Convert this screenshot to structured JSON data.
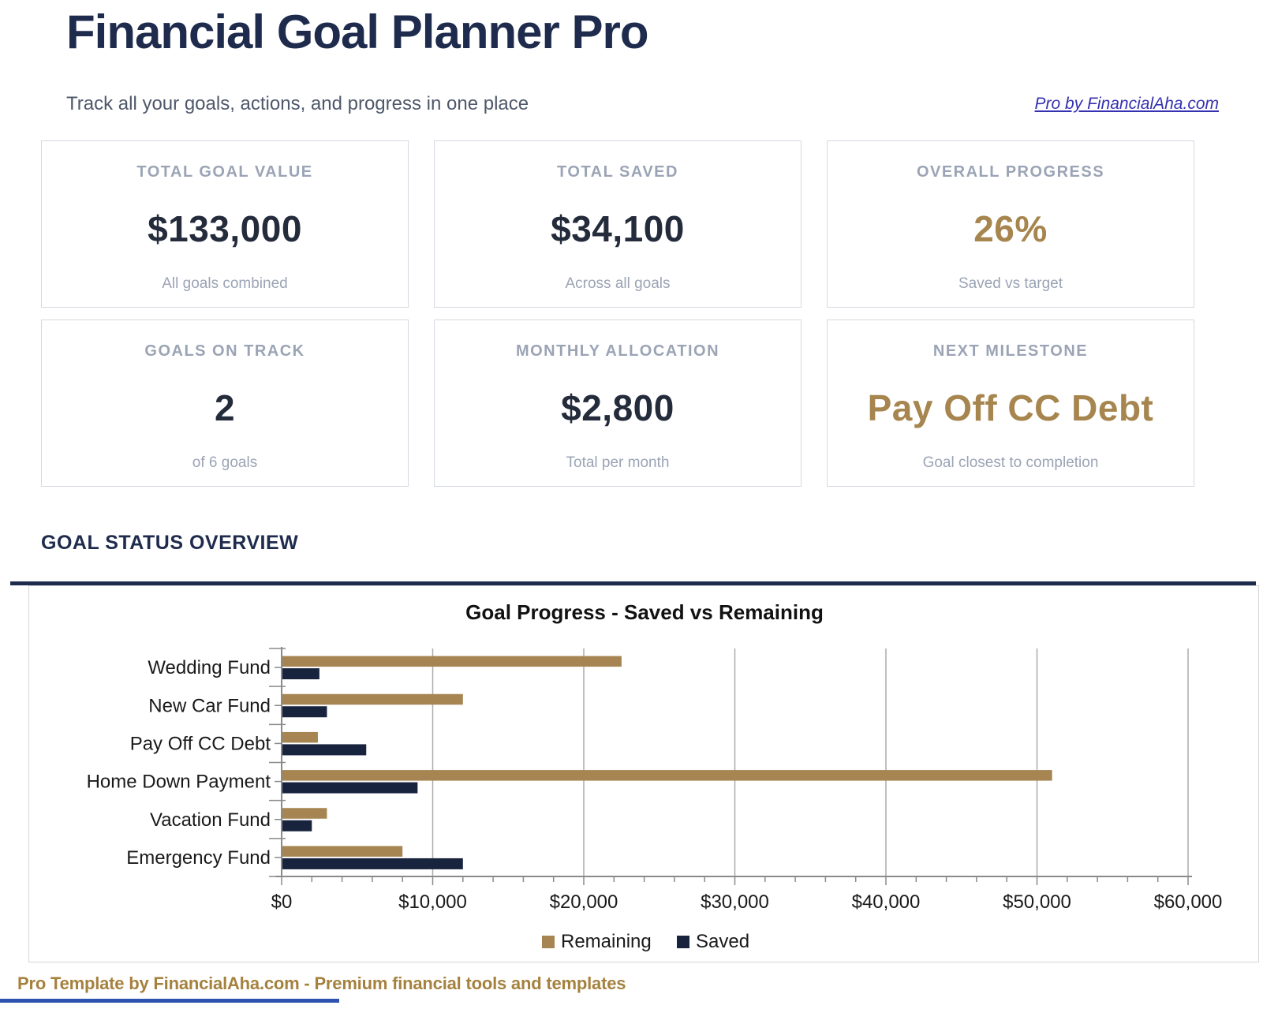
{
  "header": {
    "title": "Financial Goal Planner Pro",
    "subtitle": "Track all your goals, actions, and progress in one place",
    "link_label": "Pro by FinancialAha.com"
  },
  "summary_cards": [
    {
      "label": "TOTAL GOAL VALUE",
      "value": "$133,000",
      "sub": "All goals combined"
    },
    {
      "label": "TOTAL SAVED",
      "value": "$34,100",
      "sub": "Across all goals"
    },
    {
      "label": "OVERALL PROGRESS",
      "value": "26%",
      "sub": "Saved vs target",
      "accent": true
    },
    {
      "label": "GOALS ON TRACK",
      "value": "2",
      "sub": "of 6 goals"
    },
    {
      "label": "MONTHLY ALLOCATION",
      "value": "$2,800",
      "sub": "Total per month"
    },
    {
      "label": "NEXT MILESTONE",
      "value": "Pay Off CC Debt",
      "sub": "Goal closest to completion",
      "accent": true
    }
  ],
  "section": {
    "title": "GOAL STATUS OVERVIEW"
  },
  "chart_data": {
    "type": "bar",
    "orientation": "horizontal",
    "title": "Goal Progress - Saved vs Remaining",
    "categories": [
      "Wedding Fund",
      "New Car Fund",
      "Pay Off CC Debt",
      "Home Down Payment",
      "Vacation Fund",
      "Emergency Fund"
    ],
    "series": [
      {
        "name": "Remaining",
        "color": "#a68553",
        "values": [
          22500,
          12000,
          2400,
          51000,
          3000,
          8000
        ]
      },
      {
        "name": "Saved",
        "color": "#18243e",
        "values": [
          2500,
          3000,
          5600,
          9000,
          2000,
          12000
        ]
      }
    ],
    "xlim": [
      0,
      60000
    ],
    "x_major_tick": 10000,
    "x_minor_tick": 2000,
    "x_tick_labels": [
      "$0",
      "$10,000",
      "$20,000",
      "$30,000",
      "$40,000",
      "$50,000",
      "$60,000"
    ],
    "legend_position": "bottom-center",
    "grid": "vertical-major"
  },
  "footer": {
    "text": "Pro Template by FinancialAha.com - Premium financial tools and templates"
  },
  "colors": {
    "navy": "#1e2b4d",
    "accent_gold": "#a6854e",
    "bar_remaining": "#a68553",
    "bar_saved": "#18243e",
    "link_blue": "#3531b0",
    "footer_gold": "#a5813e",
    "muted_label": "#9ba4b5",
    "axis_gray": "#8a8a8a",
    "grid_gray": "#ababab"
  }
}
